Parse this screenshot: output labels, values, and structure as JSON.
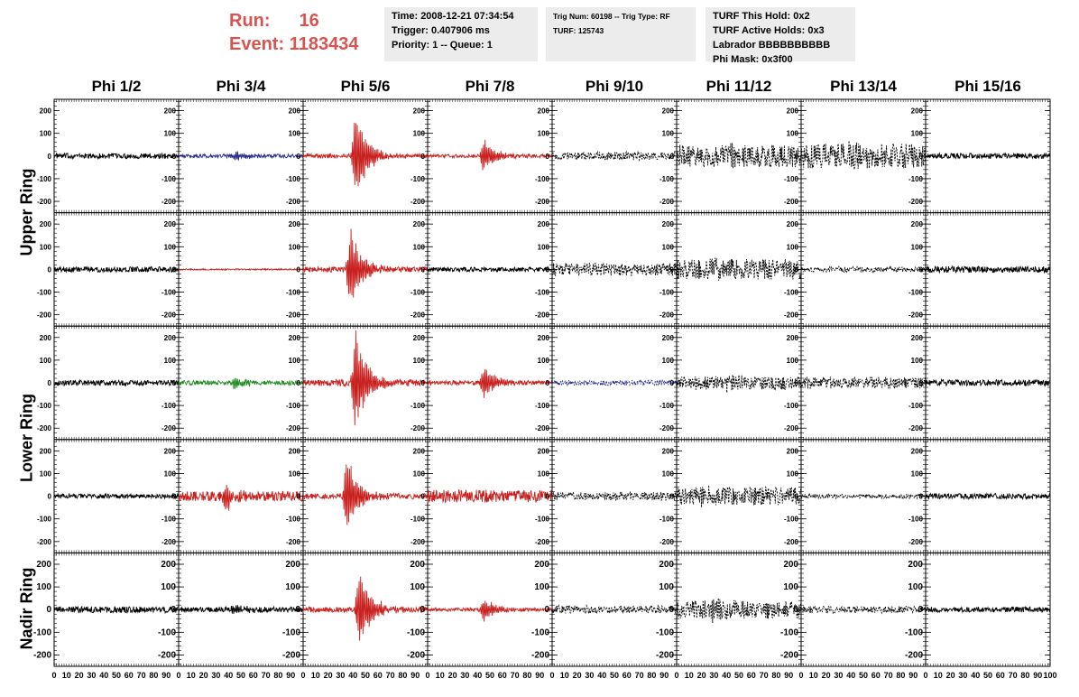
{
  "header": {
    "run_label": "Run:",
    "run_value": "16",
    "event_label": "Event:",
    "event_value": "1183434",
    "box1": [
      "Time: 2008-12-21 07:34:54",
      "Trigger: 0.407906 ms",
      "Priority: 1 -- Queue: 1"
    ],
    "box2": [
      "Trig Num: 60198 -- Trig Type: RF",
      "",
      "TURF: 125743"
    ],
    "box3": [
      "TURF This Hold: 0x2",
      "TURF Active Holds: 0x3",
      "Labrador BBBBBBBBBB",
      "Phi Mask: 0x3f00"
    ]
  },
  "columns": [
    "Phi 1/2",
    "Phi 3/4",
    "Phi 5/6",
    "Phi 7/8",
    "Phi 9/10",
    "Phi 11/12",
    "Phi 13/14",
    "Phi 15/16"
  ],
  "rows": [
    "Upper Ring",
    "Upper Ring",
    "Lower Ring",
    "Lower Ring",
    "Nadir Ring"
  ],
  "colors": {
    "black": "#000000",
    "blue": "#1f2a8a",
    "red": "#c8201e",
    "green": "#1f8a1f"
  },
  "chart_data": {
    "type": "line",
    "xlim": [
      0,
      100
    ],
    "ylim": [
      -250,
      250
    ],
    "y_ticks": [
      200,
      100,
      0,
      -100,
      -200
    ],
    "x_ticks": [
      0,
      10,
      20,
      30,
      40,
      50,
      60,
      70,
      80,
      90,
      100
    ],
    "grid": false,
    "panels": [
      {
        "row": 0,
        "col": 0,
        "color": "black",
        "style": "solid",
        "amp": 12,
        "burst": 0,
        "center": 0
      },
      {
        "row": 0,
        "col": 1,
        "color": "blue",
        "style": "solid",
        "amp": 8,
        "burst": 30,
        "center": 45
      },
      {
        "row": 0,
        "col": 2,
        "color": "red",
        "style": "solid",
        "amp": 10,
        "burst": 230,
        "center": 42
      },
      {
        "row": 0,
        "col": 3,
        "color": "red",
        "style": "solid",
        "amp": 8,
        "burst": 80,
        "center": 45
      },
      {
        "row": 0,
        "col": 4,
        "color": "black",
        "style": "dashed",
        "amp": 18,
        "burst": 0,
        "center": 0
      },
      {
        "row": 0,
        "col": 5,
        "color": "black",
        "style": "dashed",
        "amp": 50,
        "burst": 30,
        "center": 45
      },
      {
        "row": 0,
        "col": 6,
        "color": "black",
        "style": "dashed",
        "amp": 55,
        "burst": 25,
        "center": 40
      },
      {
        "row": 0,
        "col": 7,
        "color": "black",
        "style": "solid",
        "amp": 12,
        "burst": 0,
        "center": 0
      },
      {
        "row": 1,
        "col": 0,
        "color": "black",
        "style": "solid",
        "amp": 12,
        "burst": 0,
        "center": 0
      },
      {
        "row": 1,
        "col": 1,
        "color": "red",
        "style": "solid",
        "amp": 3,
        "burst": 0,
        "center": 0
      },
      {
        "row": 1,
        "col": 2,
        "color": "red",
        "style": "solid",
        "amp": 12,
        "burst": 210,
        "center": 38
      },
      {
        "row": 1,
        "col": 3,
        "color": "black",
        "style": "solid",
        "amp": 10,
        "burst": 0,
        "center": 0
      },
      {
        "row": 1,
        "col": 4,
        "color": "black",
        "style": "dashed",
        "amp": 28,
        "burst": 0,
        "center": 0
      },
      {
        "row": 1,
        "col": 5,
        "color": "black",
        "style": "dashed",
        "amp": 45,
        "burst": 25,
        "center": 30
      },
      {
        "row": 1,
        "col": 6,
        "color": "black",
        "style": "dashed",
        "amp": 12,
        "burst": 0,
        "center": 0
      },
      {
        "row": 1,
        "col": 7,
        "color": "black",
        "style": "solid",
        "amp": 14,
        "burst": 0,
        "center": 0
      },
      {
        "row": 2,
        "col": 0,
        "color": "black",
        "style": "solid",
        "amp": 12,
        "burst": 0,
        "center": 0
      },
      {
        "row": 2,
        "col": 1,
        "color": "green",
        "style": "solid",
        "amp": 10,
        "burst": 30,
        "center": 45
      },
      {
        "row": 2,
        "col": 2,
        "color": "red",
        "style": "solid",
        "amp": 15,
        "burst": 260,
        "center": 42
      },
      {
        "row": 2,
        "col": 3,
        "color": "red",
        "style": "solid",
        "amp": 10,
        "burst": 90,
        "center": 45
      },
      {
        "row": 2,
        "col": 4,
        "color": "blue",
        "style": "dashed",
        "amp": 12,
        "burst": 0,
        "center": 0
      },
      {
        "row": 2,
        "col": 5,
        "color": "black",
        "style": "dashed",
        "amp": 30,
        "burst": 25,
        "center": 40
      },
      {
        "row": 2,
        "col": 6,
        "color": "black",
        "style": "dashed",
        "amp": 25,
        "burst": 15,
        "center": 20
      },
      {
        "row": 2,
        "col": 7,
        "color": "black",
        "style": "solid",
        "amp": 14,
        "burst": 0,
        "center": 0
      },
      {
        "row": 3,
        "col": 0,
        "color": "black",
        "style": "solid",
        "amp": 10,
        "burst": 0,
        "center": 0
      },
      {
        "row": 3,
        "col": 1,
        "color": "red",
        "style": "solid",
        "amp": 22,
        "burst": 60,
        "center": 38
      },
      {
        "row": 3,
        "col": 2,
        "color": "red",
        "style": "solid",
        "amp": 12,
        "burst": 200,
        "center": 35
      },
      {
        "row": 3,
        "col": 3,
        "color": "red",
        "style": "solid",
        "amp": 28,
        "burst": 0,
        "center": 0
      },
      {
        "row": 3,
        "col": 4,
        "color": "black",
        "style": "dashed",
        "amp": 18,
        "burst": 0,
        "center": 0
      },
      {
        "row": 3,
        "col": 5,
        "color": "black",
        "style": "dashed",
        "amp": 40,
        "burst": 20,
        "center": 20
      },
      {
        "row": 3,
        "col": 6,
        "color": "black",
        "style": "dashed",
        "amp": 10,
        "burst": 0,
        "center": 0
      },
      {
        "row": 3,
        "col": 7,
        "color": "black",
        "style": "solid",
        "amp": 12,
        "burst": 0,
        "center": 0
      },
      {
        "row": 4,
        "col": 0,
        "color": "black",
        "style": "solid",
        "amp": 14,
        "burst": 0,
        "center": 0
      },
      {
        "row": 4,
        "col": 1,
        "color": "black",
        "style": "solid",
        "amp": 12,
        "burst": 25,
        "center": 45
      },
      {
        "row": 4,
        "col": 2,
        "color": "red",
        "style": "solid",
        "amp": 12,
        "burst": 210,
        "center": 45
      },
      {
        "row": 4,
        "col": 3,
        "color": "red",
        "style": "solid",
        "amp": 8,
        "burst": 60,
        "center": 45
      },
      {
        "row": 4,
        "col": 4,
        "color": "black",
        "style": "dashed",
        "amp": 18,
        "burst": 0,
        "center": 0
      },
      {
        "row": 4,
        "col": 5,
        "color": "black",
        "style": "dashed",
        "amp": 40,
        "burst": 50,
        "center": 30
      },
      {
        "row": 4,
        "col": 6,
        "color": "black",
        "style": "dashed",
        "amp": 15,
        "burst": 0,
        "center": 0
      },
      {
        "row": 4,
        "col": 7,
        "color": "black",
        "style": "solid",
        "amp": 12,
        "burst": 0,
        "center": 0
      }
    ]
  }
}
